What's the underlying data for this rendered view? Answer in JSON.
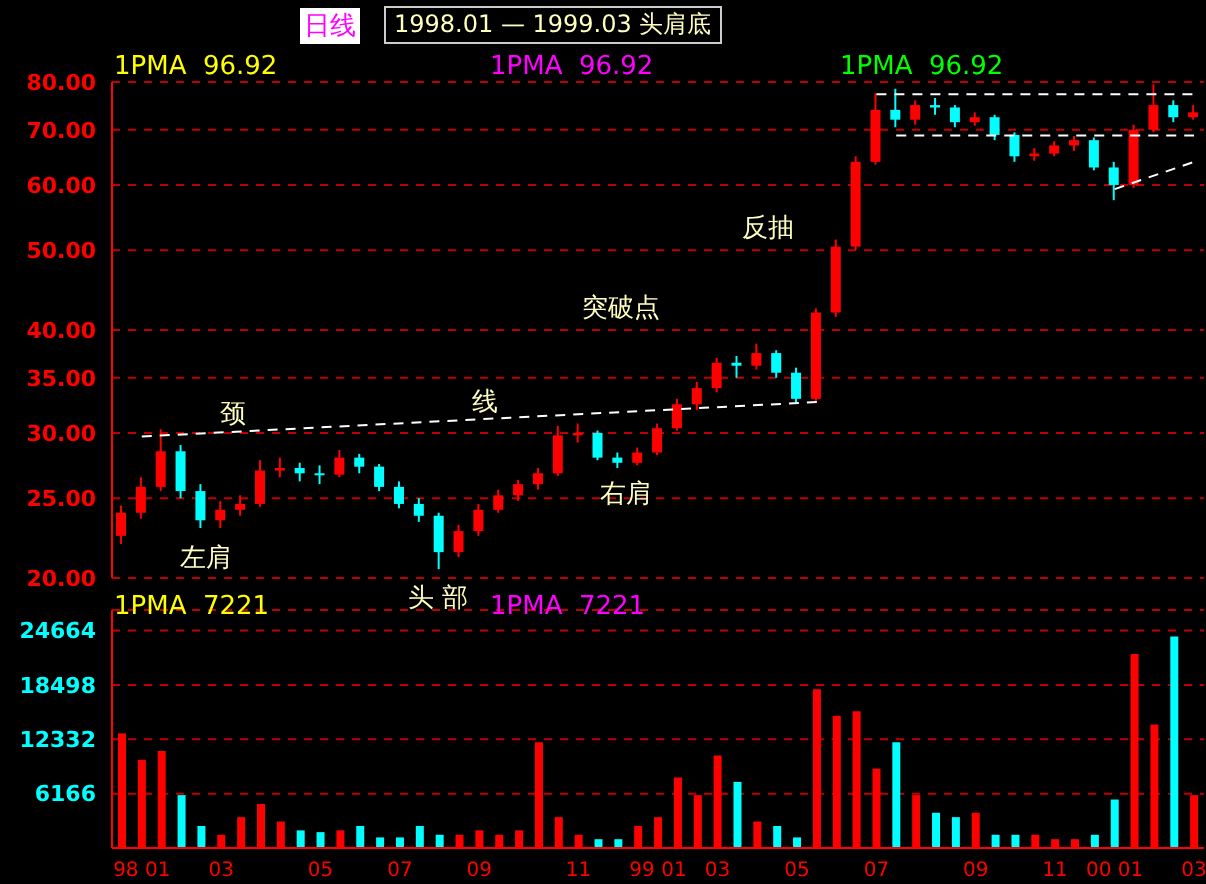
{
  "chart_data": [
    {
      "type": "candlestick",
      "title": "日线",
      "subtitle": "1998.01 — 1999.03 头肩底",
      "categories": [
        null,
        null,
        null,
        null,
        null,
        null,
        null,
        null,
        null,
        null,
        null,
        null,
        null,
        null,
        null,
        null,
        null,
        null,
        null,
        null,
        null,
        null,
        null,
        null,
        null,
        null,
        null,
        null,
        null,
        null,
        null,
        null,
        null,
        null,
        null,
        null,
        null,
        null,
        null,
        null,
        null,
        null,
        null,
        null,
        null,
        null,
        null,
        null,
        null,
        null,
        null,
        null,
        null,
        null,
        null
      ],
      "ohlc": [
        [
          22.5,
          24.5,
          22.0,
          24.0
        ],
        [
          24.0,
          26.5,
          23.6,
          25.8
        ],
        [
          25.8,
          30.3,
          25.5,
          28.5
        ],
        [
          28.5,
          29.0,
          25.0,
          25.5
        ],
        [
          25.5,
          26.0,
          23.0,
          23.5
        ],
        [
          23.5,
          24.8,
          23.0,
          24.2
        ],
        [
          24.2,
          25.2,
          23.8,
          24.6
        ],
        [
          24.6,
          27.8,
          24.4,
          27.0
        ],
        [
          27.0,
          28.0,
          26.5,
          27.2
        ],
        [
          27.2,
          27.6,
          26.2,
          26.8
        ],
        [
          26.8,
          27.4,
          26.0,
          26.7
        ],
        [
          26.7,
          28.6,
          26.5,
          28.0
        ],
        [
          28.0,
          28.3,
          26.8,
          27.3
        ],
        [
          27.3,
          27.5,
          25.5,
          25.8
        ],
        [
          25.8,
          26.2,
          24.3,
          24.6
        ],
        [
          24.6,
          25.0,
          23.4,
          23.8
        ],
        [
          23.8,
          24.0,
          20.5,
          21.5
        ],
        [
          21.5,
          23.2,
          21.2,
          22.8
        ],
        [
          22.8,
          24.6,
          22.5,
          24.2
        ],
        [
          24.2,
          25.6,
          24.0,
          25.2
        ],
        [
          25.2,
          26.3,
          24.8,
          26.0
        ],
        [
          26.0,
          27.2,
          25.6,
          26.8
        ],
        [
          26.8,
          30.6,
          26.6,
          29.8
        ],
        [
          29.8,
          30.8,
          29.2,
          30.0
        ],
        [
          30.0,
          30.2,
          27.8,
          28.0
        ],
        [
          28.0,
          28.4,
          27.2,
          27.6
        ],
        [
          27.6,
          28.8,
          27.4,
          28.4
        ],
        [
          28.4,
          30.8,
          28.2,
          30.4
        ],
        [
          30.4,
          33.0,
          30.2,
          32.5
        ],
        [
          32.5,
          34.6,
          32.0,
          34.0
        ],
        [
          34.0,
          37.0,
          33.6,
          36.5
        ],
        [
          36.5,
          37.2,
          35.0,
          36.2
        ],
        [
          36.2,
          38.5,
          35.8,
          37.5
        ],
        [
          37.5,
          37.8,
          35.0,
          35.5
        ],
        [
          35.5,
          36.0,
          32.6,
          33.0
        ],
        [
          33.0,
          42.5,
          32.8,
          42.0
        ],
        [
          42.0,
          51.5,
          41.5,
          50.5
        ],
        [
          50.5,
          65.0,
          50.0,
          64.0
        ],
        [
          64.0,
          77.5,
          63.5,
          74.0
        ],
        [
          74.0,
          78.5,
          70.5,
          72.0
        ],
        [
          72.0,
          76.0,
          71.0,
          75.0
        ],
        [
          75.0,
          76.5,
          73.0,
          74.5
        ],
        [
          74.5,
          75.0,
          70.5,
          71.5
        ],
        [
          71.5,
          73.5,
          70.8,
          72.5
        ],
        [
          72.5,
          73.0,
          68.0,
          69.0
        ],
        [
          69.0,
          69.5,
          64.0,
          65.0
        ],
        [
          65.0,
          66.5,
          64.2,
          65.5
        ],
        [
          65.5,
          67.8,
          65.0,
          67.0
        ],
        [
          67.0,
          68.8,
          66.0,
          68.0
        ],
        [
          68.0,
          68.5,
          62.5,
          63.0
        ],
        [
          63.0,
          64.0,
          57.5,
          60.0
        ],
        [
          60.0,
          71.0,
          59.5,
          70.0
        ],
        [
          70.0,
          79.5,
          69.5,
          75.0
        ],
        [
          75.0,
          76.0,
          71.5,
          72.5
        ],
        [
          72.5,
          75.0,
          72.0,
          73.5
        ]
      ],
      "colors": [
        "#ff0000",
        "#ff0000",
        "#ff0000",
        "#00ffff",
        "#00ffff",
        "#ff0000",
        "#ff0000",
        "#ff0000",
        "#ff0000",
        "#00ffff",
        "#00ffff",
        "#ff0000",
        "#00ffff",
        "#00ffff",
        "#00ffff",
        "#00ffff",
        "#00ffff",
        "#ff0000",
        "#ff0000",
        "#ff0000",
        "#ff0000",
        "#ff0000",
        "#ff0000",
        "#ff0000",
        "#00ffff",
        "#00ffff",
        "#ff0000",
        "#ff0000",
        "#ff0000",
        "#ff0000",
        "#ff0000",
        "#00ffff",
        "#ff0000",
        "#00ffff",
        "#00ffff",
        "#ff0000",
        "#ff0000",
        "#ff0000",
        "#ff0000",
        "#00ffff",
        "#ff0000",
        "#00ffff",
        "#00ffff",
        "#ff0000",
        "#00ffff",
        "#00ffff",
        "#ff0000",
        "#ff0000",
        "#ff0000",
        "#00ffff",
        "#00ffff",
        "#ff0000",
        "#ff0000",
        "#00ffff",
        "#ff0000"
      ],
      "series": [
        {
          "type": "line",
          "color": "#ffffff",
          "line_style": "dashed",
          "values": [
            null,
            29.7,
            null,
            null,
            null,
            null,
            null,
            null,
            null,
            null,
            null,
            null,
            null,
            null,
            null,
            null,
            null,
            null,
            null,
            null,
            null,
            null,
            null,
            null,
            null,
            null,
            null,
            null,
            null,
            null,
            null,
            null,
            null,
            null,
            null,
            32.7,
            null,
            null,
            null,
            null,
            null,
            null,
            null,
            null,
            null,
            null,
            null,
            null,
            null,
            null,
            null,
            null,
            null,
            null,
            null
          ]
        },
        {
          "type": "line",
          "color": "#ffffff",
          "line_style": "dashed",
          "values": [
            null,
            null,
            null,
            null,
            null,
            null,
            null,
            null,
            null,
            null,
            null,
            null,
            null,
            null,
            null,
            null,
            null,
            null,
            null,
            null,
            null,
            null,
            null,
            null,
            null,
            null,
            null,
            null,
            null,
            null,
            null,
            null,
            null,
            null,
            null,
            null,
            null,
            null,
            77.3,
            null,
            null,
            null,
            null,
            null,
            null,
            null,
            null,
            null,
            null,
            null,
            null,
            null,
            null,
            null,
            77.3
          ]
        },
        {
          "type": "line",
          "color": "#ffffff",
          "line_style": "dashed",
          "values": [
            null,
            null,
            null,
            null,
            null,
            null,
            null,
            null,
            null,
            null,
            null,
            null,
            null,
            null,
            null,
            null,
            null,
            null,
            null,
            null,
            null,
            null,
            null,
            null,
            null,
            null,
            null,
            null,
            null,
            null,
            null,
            null,
            null,
            null,
            null,
            null,
            null,
            null,
            null,
            68.9,
            null,
            null,
            null,
            null,
            null,
            null,
            null,
            null,
            null,
            null,
            null,
            null,
            null,
            null,
            68.9
          ]
        },
        {
          "type": "line",
          "color": "#ffffff",
          "line_style": "dashed",
          "values": [
            null,
            null,
            null,
            null,
            null,
            null,
            null,
            null,
            null,
            null,
            null,
            null,
            null,
            null,
            null,
            null,
            null,
            null,
            null,
            null,
            null,
            null,
            null,
            null,
            null,
            null,
            null,
            null,
            null,
            null,
            null,
            null,
            null,
            null,
            null,
            null,
            null,
            null,
            null,
            null,
            null,
            null,
            null,
            null,
            null,
            null,
            null,
            null,
            null,
            null,
            59.3,
            null,
            null,
            null,
            64.0
          ]
        }
      ],
      "ylim": [
        20,
        80
      ],
      "yticks": [
        {
          "value": 20,
          "label": "20.00"
        },
        {
          "value": 25,
          "label": "25.00"
        },
        {
          "value": 30,
          "label": "30.00"
        },
        {
          "value": 35,
          "label": "35.00"
        },
        {
          "value": 40,
          "label": "40.00"
        },
        {
          "value": 50,
          "label": "50.00"
        },
        {
          "value": 60,
          "label": "60.00"
        },
        {
          "value": 70,
          "label": "70.00"
        },
        {
          "value": 80,
          "label": "80.00"
        }
      ],
      "log": true,
      "grid": "y",
      "tick_labels": "y",
      "annotations": [
        "1PMA  96.92",
        "1PMA  96.92",
        "1PMA  96.92",
        "颈",
        "线",
        "左肩",
        "头 部",
        "右肩",
        "突破点",
        "反抽"
      ]
    },
    {
      "type": "bar",
      "categories": [
        null,
        "98 01",
        null,
        null,
        null,
        "03",
        null,
        null,
        null,
        null,
        "05",
        null,
        null,
        null,
        "07",
        null,
        null,
        null,
        "09",
        null,
        null,
        null,
        null,
        "11",
        null,
        null,
        null,
        "99 01",
        null,
        null,
        "03",
        null,
        null,
        null,
        "05",
        null,
        null,
        null,
        "07",
        null,
        null,
        null,
        null,
        "09",
        null,
        null,
        null,
        "11",
        null,
        null,
        "00 01",
        null,
        null,
        null,
        "03"
      ],
      "values": [
        13000,
        10000,
        11000,
        6000,
        2500,
        1500,
        3500,
        5000,
        3000,
        2000,
        1800,
        2000,
        2500,
        1200,
        1200,
        2500,
        1500,
        1500,
        2000,
        1500,
        2000,
        12000,
        3500,
        1500,
        1000,
        1000,
        2500,
        3500,
        8000,
        6000,
        10500,
        7500,
        3000,
        2500,
        1200,
        18000,
        15000,
        15500,
        9000,
        12000,
        6000,
        4000,
        3500,
        4000,
        1500,
        1500,
        1500,
        1000,
        1000,
        1500,
        5500,
        22000,
        14000,
        24000,
        6000
      ],
      "colors": [
        "#ff0000",
        "#ff0000",
        "#ff0000",
        "#00ffff",
        "#00ffff",
        "#ff0000",
        "#ff0000",
        "#ff0000",
        "#ff0000",
        "#00ffff",
        "#00ffff",
        "#ff0000",
        "#00ffff",
        "#00ffff",
        "#00ffff",
        "#00ffff",
        "#00ffff",
        "#ff0000",
        "#ff0000",
        "#ff0000",
        "#ff0000",
        "#ff0000",
        "#ff0000",
        "#ff0000",
        "#00ffff",
        "#00ffff",
        "#ff0000",
        "#ff0000",
        "#ff0000",
        "#ff0000",
        "#ff0000",
        "#00ffff",
        "#ff0000",
        "#00ffff",
        "#00ffff",
        "#ff0000",
        "#ff0000",
        "#ff0000",
        "#ff0000",
        "#00ffff",
        "#ff0000",
        "#00ffff",
        "#00ffff",
        "#ff0000",
        "#00ffff",
        "#00ffff",
        "#ff0000",
        "#ff0000",
        "#ff0000",
        "#00ffff",
        "#00ffff",
        "#ff0000",
        "#ff0000",
        "#00ffff",
        "#ff0000"
      ],
      "ylim": [
        0,
        27000
      ],
      "yticks": [
        6166,
        12332,
        18498,
        24664
      ],
      "grid": "y",
      "annotations": [
        "1PMA  7221",
        "1PMA  7221"
      ]
    }
  ]
}
